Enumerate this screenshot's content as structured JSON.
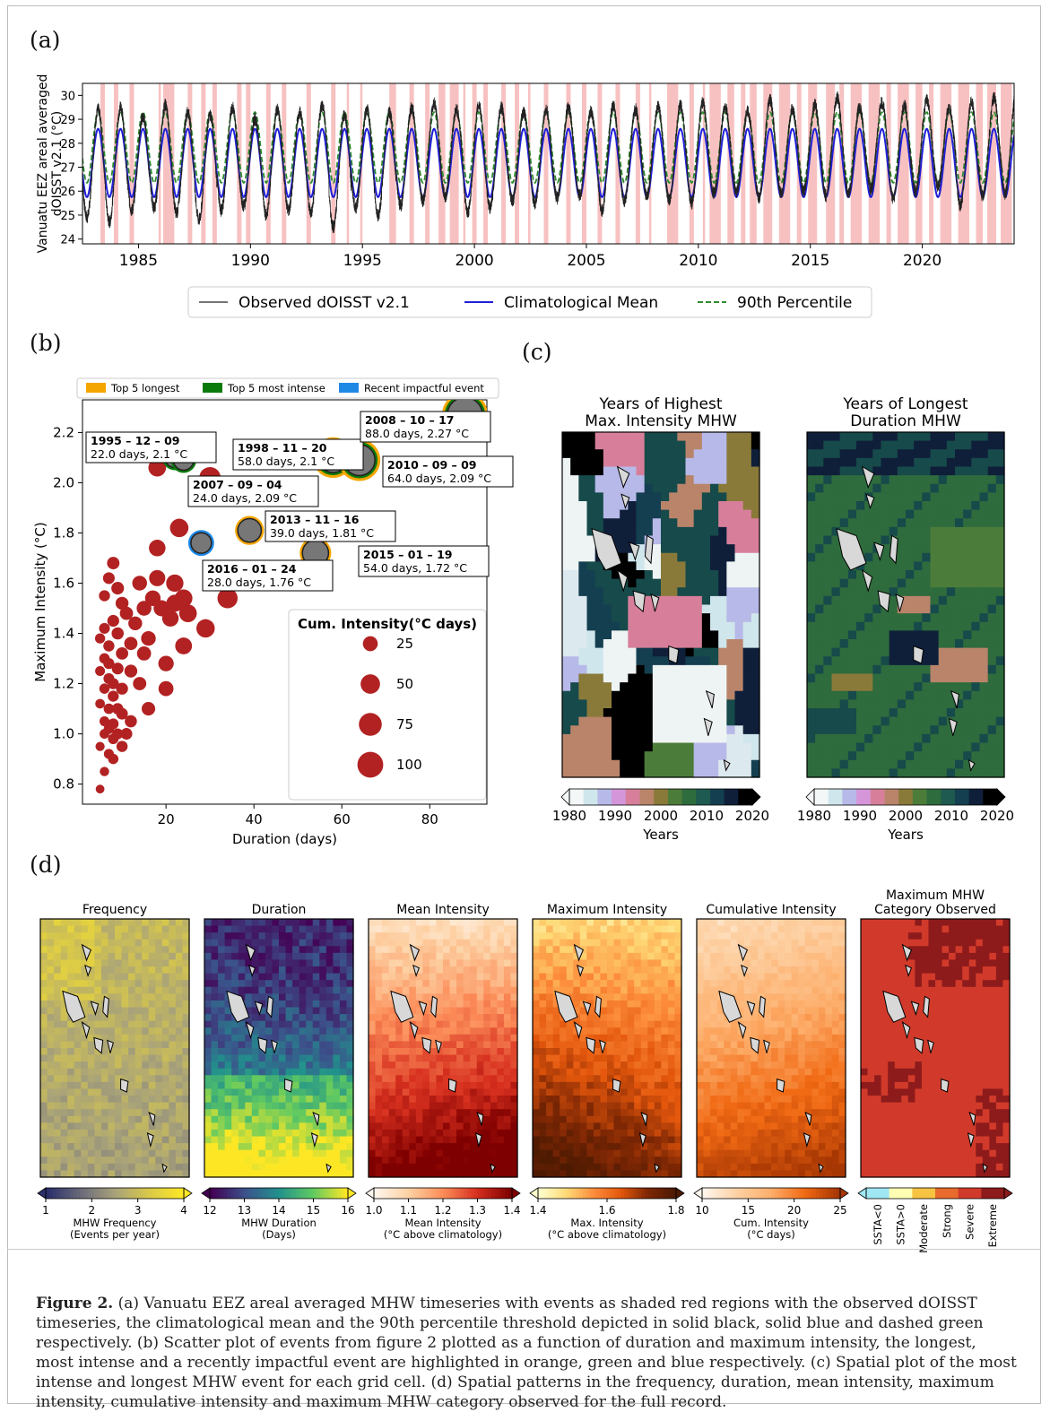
{
  "panel_labels": {
    "a": "(a)",
    "b": "(b)",
    "c": "(c)",
    "d": "(d)"
  },
  "caption": {
    "figure_label": "Figure 2.",
    "text": "(a) Vanuatu EEZ areal averaged MHW timeseries with events as shaded red regions with the observed dOISST timeseries, the climatological mean and the 90th percentile threshold depicted in solid black, solid blue and dashed green respectively. (b) Scatter plot of events from figure 2 plotted as a function of duration and maximum intensity, the longest, most intense and a recently impactful event are highlighted in orange, green and blue respectively. (c) Spatial plot of the most intense and longest MHW event for each grid cell. (d) Spatial patterns in the frequency, duration, mean intensity, maximum intensity, cumulative intensity and maximum MHW category observed for the full record."
  },
  "chart_data": [
    {
      "type": "line",
      "panel": "a",
      "ylabel": "Vanuatu EEZ areal averaged dOISST v2.1 (°C)",
      "ylabel_line1": "Vanuatu EEZ areal averaged",
      "ylabel_line2": "dOISST v2.1 (°C)",
      "xlim": [
        1982.5,
        2024.1
      ],
      "ylim": [
        23.8,
        30.5
      ],
      "x_ticks": [
        1985,
        1990,
        1995,
        2000,
        2005,
        2010,
        2015,
        2020
      ],
      "y_ticks": [
        24,
        25,
        26,
        27,
        28,
        29,
        30
      ],
      "series": [
        {
          "name": "Observed dOISST v2.1",
          "color": "#222222",
          "style": "solid",
          "annual_min": [
            24.9,
            24.7,
            25.2,
            25.3,
            25.1,
            24.8,
            25.2,
            25.4,
            25.0,
            25.2,
            25.1,
            24.5,
            25.3,
            25.0,
            25.4,
            25.6,
            25.8,
            25.1,
            25.3,
            25.6,
            25.5,
            25.7,
            25.8,
            25.2,
            25.6,
            25.8,
            25.6,
            25.5,
            25.9,
            26.0,
            25.7,
            25.9,
            26.0,
            25.8,
            25.9,
            26.1,
            25.7,
            26.0,
            26.2,
            25.4,
            25.8,
            25.9
          ],
          "annual_max": [
            29.4,
            29.5,
            29.1,
            29.6,
            29.3,
            29.2,
            29.5,
            29.0,
            29.4,
            29.3,
            29.6,
            29.2,
            29.4,
            29.3,
            29.5,
            29.7,
            29.4,
            29.6,
            29.5,
            29.3,
            29.4,
            29.5,
            29.3,
            29.6,
            29.4,
            29.5,
            29.6,
            29.7,
            29.5,
            29.3,
            29.8,
            29.4,
            29.6,
            29.9,
            29.5,
            29.7,
            29.6,
            29.8,
            29.5,
            29.7,
            29.9,
            30.2
          ]
        },
        {
          "name": "Climatological Mean",
          "color": "#1f1fd8",
          "style": "solid",
          "max": 28.6,
          "min": 25.75
        },
        {
          "name": "90th Percentile",
          "color": "#2e8b2e",
          "style": "dashed",
          "max": 29.3,
          "min": 26.35
        }
      ],
      "mhw_events": [
        [
          1983.3,
          1983.5
        ],
        [
          1983.9,
          1984.1
        ],
        [
          1984.6,
          1984.8
        ],
        [
          1985.9,
          1986.0
        ],
        [
          1986.1,
          1986.6
        ],
        [
          1987.2,
          1987.4
        ],
        [
          1987.8,
          1988.0
        ],
        [
          1988.3,
          1988.5
        ],
        [
          1989.4,
          1989.6
        ],
        [
          1989.8,
          1990.0
        ],
        [
          1990.7,
          1990.9
        ],
        [
          1991.4,
          1991.6
        ],
        [
          1992.5,
          1992.7
        ],
        [
          1993.6,
          1993.8
        ],
        [
          1994.3,
          1994.4
        ],
        [
          1994.9,
          1995.0
        ],
        [
          1996.2,
          1996.5
        ],
        [
          1997.1,
          1997.3
        ],
        [
          1997.8,
          1998.0
        ],
        [
          1998.4,
          1998.7
        ],
        [
          1998.9,
          1999.3
        ],
        [
          1999.5,
          1999.6
        ],
        [
          1999.9,
          2000.1
        ],
        [
          2000.4,
          2000.6
        ],
        [
          2001.2,
          2001.4
        ],
        [
          2001.8,
          2002.0
        ],
        [
          2002.4,
          2002.5
        ],
        [
          2003.1,
          2003.3
        ],
        [
          2004.1,
          2004.3
        ],
        [
          2004.8,
          2005.0
        ],
        [
          2005.5,
          2005.7
        ],
        [
          2006.3,
          2006.5
        ],
        [
          2007.2,
          2007.4
        ],
        [
          2007.8,
          2007.9
        ],
        [
          2008.6,
          2009.1
        ],
        [
          2009.6,
          2009.8
        ],
        [
          2010.2,
          2010.3
        ],
        [
          2010.5,
          2011.0
        ],
        [
          2011.3,
          2011.6
        ],
        [
          2011.9,
          2012.1
        ],
        [
          2012.3,
          2012.6
        ],
        [
          2012.9,
          2013.3
        ],
        [
          2013.6,
          2014.1
        ],
        [
          2014.4,
          2014.6
        ],
        [
          2014.9,
          2015.3
        ],
        [
          2015.7,
          2016.1
        ],
        [
          2016.3,
          2016.5
        ],
        [
          2016.8,
          2017.3
        ],
        [
          2017.6,
          2018.1
        ],
        [
          2018.4,
          2018.6
        ],
        [
          2018.9,
          2019.4
        ],
        [
          2019.7,
          2020.0
        ],
        [
          2020.3,
          2020.5
        ],
        [
          2020.8,
          2021.3
        ],
        [
          2021.6,
          2022.1
        ],
        [
          2022.4,
          2022.7
        ],
        [
          2022.9,
          2023.3
        ],
        [
          2023.5,
          2024.0
        ]
      ],
      "legend": [
        "Observed dOISST v2.1",
        "Climatological Mean",
        "90th Percentile"
      ]
    },
    {
      "type": "scatter",
      "panel": "b",
      "xlabel": "Duration (days)",
      "ylabel": "Maximum Intensity (°C)",
      "xlim": [
        1,
        93
      ],
      "ylim": [
        0.72,
        2.33
      ],
      "x_ticks": [
        20,
        40,
        60,
        80
      ],
      "y_ticks": [
        0.8,
        1.0,
        1.2,
        1.4,
        1.6,
        1.8,
        2.0,
        2.2
      ],
      "legend_top": [
        {
          "label": "Top 5 longest",
          "color": "#f5a500"
        },
        {
          "label": "Top 5 most intense",
          "color": "#0a7a0a"
        },
        {
          "label": "Recent impactful event",
          "color": "#1e88e5"
        }
      ],
      "size_legend": {
        "title": "Cum. Intensity(°C days)",
        "values": [
          25,
          50,
          75,
          100
        ]
      },
      "highlighted": [
        {
          "date": "1995 – 12 – 09",
          "detail": "22.0 days, 2.1 °C",
          "x": 22,
          "y": 2.1,
          "cum": 40,
          "ring": "green",
          "label_pos": "upper-left"
        },
        {
          "date": "2007 – 09 – 04",
          "detail": "24.0 days, 2.09 °C",
          "x": 24,
          "y": 2.09,
          "cum": 42,
          "ring": "green",
          "label_pos": "lower-right"
        },
        {
          "date": "1998 – 11 – 20",
          "detail": "58.0 days, 2.1 °C",
          "x": 58,
          "y": 2.1,
          "cum": 110,
          "ring": "both",
          "label_pos": "upper-left"
        },
        {
          "date": "2010 – 09 – 09",
          "detail": "64.0 days, 2.09 °C",
          "x": 64,
          "y": 2.09,
          "cum": 120,
          "ring": "both",
          "label_pos": "right"
        },
        {
          "date": "2008 – 10 – 17",
          "detail": "88.0 days, 2.27 °C",
          "x": 88,
          "y": 2.27,
          "cum": 160,
          "ring": "both",
          "label_pos": "upper-left"
        },
        {
          "date": "2013 – 11 – 16",
          "detail": "39.0 days, 1.81 °C",
          "x": 39,
          "y": 1.81,
          "cum": 62,
          "ring": "orange",
          "label_pos": "upper-right"
        },
        {
          "date": "2015 – 01 – 19",
          "detail": "54.0 days, 1.72 °C",
          "x": 54,
          "y": 1.72,
          "cum": 80,
          "ring": "orange",
          "label_pos": "right"
        },
        {
          "date": "2016 – 01 – 24",
          "detail": "28.0 days, 1.76 °C",
          "x": 28,
          "y": 1.76,
          "cum": 44,
          "ring": "blue",
          "label_pos": "lower-right"
        }
      ],
      "points": [
        [
          5,
          0.78
        ],
        [
          6,
          0.85
        ],
        [
          5,
          0.95
        ],
        [
          6,
          1.0
        ],
        [
          7,
          0.92
        ],
        [
          8,
          0.98
        ],
        [
          6,
          1.05
        ],
        [
          7,
          1.1
        ],
        [
          8,
          1.04
        ],
        [
          9,
          1.0
        ],
        [
          10,
          0.95
        ],
        [
          5,
          1.12
        ],
        [
          6,
          1.18
        ],
        [
          7,
          1.22
        ],
        [
          8,
          1.15
        ],
        [
          9,
          1.1
        ],
        [
          10,
          1.08
        ],
        [
          11,
          1.0
        ],
        [
          5,
          1.25
        ],
        [
          6,
          1.3
        ],
        [
          7,
          1.28
        ],
        [
          8,
          1.2
        ],
        [
          9,
          1.26
        ],
        [
          10,
          1.18
        ],
        [
          12,
          1.05
        ],
        [
          5,
          1.38
        ],
        [
          6,
          1.42
        ],
        [
          7,
          1.35
        ],
        [
          8,
          1.45
        ],
        [
          9,
          1.4
        ],
        [
          10,
          1.32
        ],
        [
          6,
          1.55
        ],
        [
          7,
          1.62
        ],
        [
          8,
          1.68
        ],
        [
          9,
          1.58
        ],
        [
          10,
          1.52
        ],
        [
          11,
          1.48
        ],
        [
          12,
          1.36
        ],
        [
          13,
          1.44
        ],
        [
          14,
          1.6
        ],
        [
          15,
          1.5
        ],
        [
          16,
          1.38
        ],
        [
          17,
          1.54
        ],
        [
          18,
          1.62
        ],
        [
          18,
          1.74
        ],
        [
          19,
          1.5
        ],
        [
          20,
          1.28
        ],
        [
          21,
          1.46
        ],
        [
          22,
          1.52
        ],
        [
          23,
          1.82
        ],
        [
          24,
          1.54
        ],
        [
          24,
          1.35
        ],
        [
          14,
          1.2
        ],
        [
          16,
          1.1
        ],
        [
          18,
          2.06
        ],
        [
          20,
          1.18
        ],
        [
          22,
          1.6
        ],
        [
          25,
          1.48
        ],
        [
          29,
          1.42
        ],
        [
          30,
          2.02
        ],
        [
          34,
          1.54
        ],
        [
          12,
          1.25
        ],
        [
          15,
          1.32
        ],
        [
          8,
          0.9
        ],
        [
          7,
          1.02
        ]
      ]
    },
    {
      "type": "heatmap",
      "panel": "c",
      "maps": [
        {
          "title_line1": "Years of Highest",
          "title_line2": "Max. Intensity MHW",
          "colorbar_label": "Years",
          "colorbar_ticks": [
            "1980",
            "1990",
            "2000",
            "2010",
            "2020"
          ]
        },
        {
          "title_line1": "Years of Longest",
          "title_line2": "Duration MHW",
          "colorbar_label": "Years",
          "colorbar_ticks": [
            "1980",
            "1990",
            "2000",
            "2010",
            "2020"
          ]
        }
      ]
    },
    {
      "type": "heatmap",
      "panel": "d",
      "maps": [
        {
          "title_line1": "",
          "title_line2": "Frequency",
          "colorbar_label_line1": "MHW Frequency",
          "colorbar_label_line2": "(Events per year)",
          "colorbar_ticks": [
            "1",
            "2",
            "3",
            "4"
          ]
        },
        {
          "title_line1": "",
          "title_line2": "Duration",
          "colorbar_label_line1": "MHW Duration",
          "colorbar_label_line2": "(Days)",
          "colorbar_ticks": [
            "12",
            "13",
            "14",
            "15",
            "16"
          ]
        },
        {
          "title_line1": "",
          "title_line2": "Mean Intensity",
          "colorbar_label_line1": "Mean Intensity",
          "colorbar_label_line2": "(°C above climatology)",
          "colorbar_ticks": [
            "1.0",
            "1.1",
            "1.2",
            "1.3",
            "1.4"
          ]
        },
        {
          "title_line1": "",
          "title_line2": "Maximum Intensity",
          "colorbar_label_line1": "Max. Intensity",
          "colorbar_label_line2": "(°C above climatology)",
          "colorbar_ticks": [
            "1.4",
            "1.6",
            "1.8"
          ]
        },
        {
          "title_line1": "",
          "title_line2": "Cumulative Intensity",
          "colorbar_label_line1": "Cum. Intensity",
          "colorbar_label_line2": "(°C days)",
          "colorbar_ticks": [
            "10",
            "15",
            "20",
            "25"
          ]
        },
        {
          "title_line1": "Maximum MHW",
          "title_line2": "Category Observed",
          "colorbar_label_line1": "",
          "colorbar_label_line2": "",
          "colorbar_ticks": [
            "SSTA<0",
            "SSTA>0",
            "Moderate",
            "Strong",
            "Severe",
            "Extreme"
          ]
        }
      ]
    }
  ]
}
